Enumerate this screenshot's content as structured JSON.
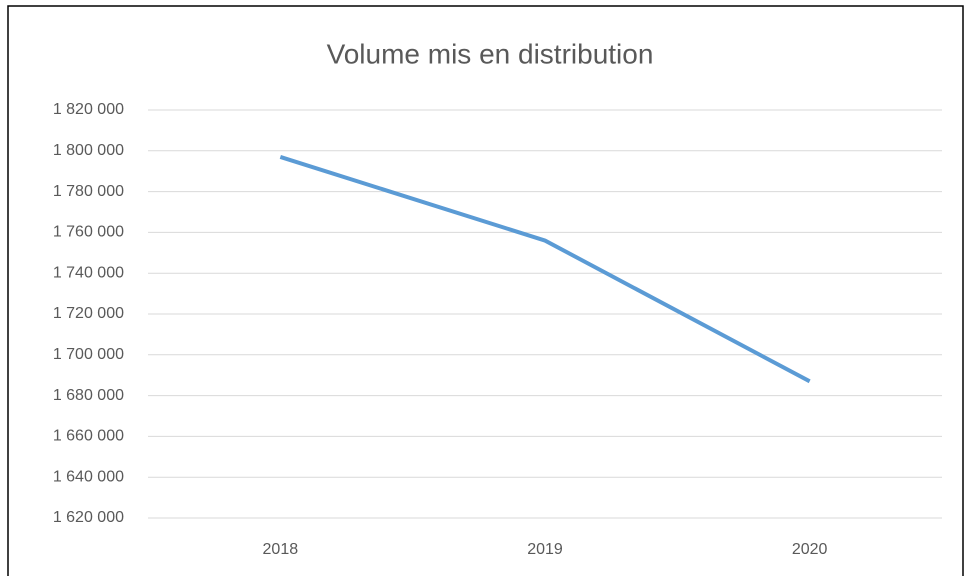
{
  "chart_data": {
    "type": "line",
    "title": "Volume mis en distribution",
    "categories": [
      "2018",
      "2019",
      "2020"
    ],
    "series": [
      {
        "name": "Volume mis en distribution",
        "color": "#5b9bd5",
        "values": [
          1797000,
          1756000,
          1687000
        ]
      }
    ],
    "ylim": [
      1620000,
      1820000
    ],
    "yticks": [
      {
        "value": 1620000,
        "label": "1 620 000"
      },
      {
        "value": 1640000,
        "label": "1 640 000"
      },
      {
        "value": 1660000,
        "label": "1 660 000"
      },
      {
        "value": 1680000,
        "label": "1 680 000"
      },
      {
        "value": 1700000,
        "label": "1 700 000"
      },
      {
        "value": 1720000,
        "label": "1 720 000"
      },
      {
        "value": 1740000,
        "label": "1 740 000"
      },
      {
        "value": 1760000,
        "label": "1 760 000"
      },
      {
        "value": 1780000,
        "label": "1 780 000"
      },
      {
        "value": 1800000,
        "label": "1 800 000"
      },
      {
        "value": 1820000,
        "label": "1 820 000"
      }
    ],
    "grid": true
  }
}
